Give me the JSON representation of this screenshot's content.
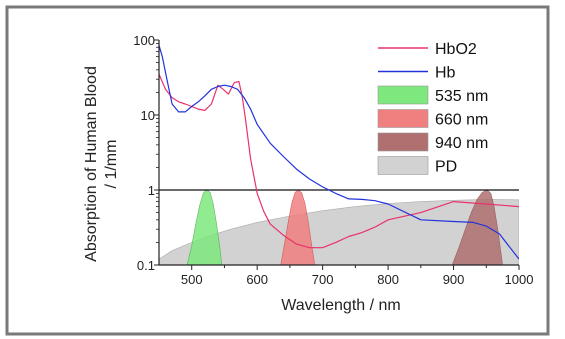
{
  "chart_data": {
    "type": "line",
    "title": "",
    "xlabel": "Wavelength / nm",
    "ylabel_line1": "Absorption of Human Blood",
    "ylabel_line2": "/ 1/mm",
    "xlim": [
      450,
      1000
    ],
    "ylim": [
      0.1,
      100
    ],
    "yscale": "log",
    "xticks": [
      500,
      600,
      700,
      800,
      900,
      1000
    ],
    "xtick_labels": [
      "500",
      "600",
      "700",
      "800",
      "900",
      "1000"
    ],
    "yticks": [
      0.1,
      1,
      10,
      100
    ],
    "ytick_labels": [
      "0.1",
      "1",
      "10",
      "100"
    ],
    "reference_line_y": 1,
    "grid": false,
    "legend_position": "top-right",
    "series": [
      {
        "name": "HbO2",
        "kind": "line",
        "color": "#e8336b",
        "x": [
          450,
          460,
          470,
          480,
          490,
          500,
          510,
          520,
          530,
          540,
          548,
          556,
          565,
          572,
          577,
          582,
          590,
          600,
          610,
          620,
          640,
          660,
          680,
          700,
          720,
          740,
          760,
          780,
          800,
          850,
          900,
          950,
          1000
        ],
        "y": [
          35,
          22,
          17,
          15,
          14,
          13,
          12,
          11.5,
          14,
          25,
          22,
          19,
          27,
          28,
          18,
          9,
          2.6,
          0.9,
          0.52,
          0.35,
          0.25,
          0.19,
          0.17,
          0.17,
          0.2,
          0.24,
          0.27,
          0.32,
          0.4,
          0.5,
          0.7,
          0.65,
          0.6
        ]
      },
      {
        "name": "Hb",
        "kind": "line",
        "color": "#2233dd",
        "x": [
          450,
          455,
          462,
          470,
          480,
          490,
          500,
          510,
          520,
          530,
          540,
          550,
          560,
          570,
          580,
          590,
          600,
          620,
          640,
          660,
          680,
          700,
          720,
          740,
          760,
          780,
          800,
          850,
          900,
          930,
          950,
          970,
          1000
        ],
        "y": [
          85,
          60,
          30,
          14,
          11,
          11,
          13,
          15,
          18,
          22,
          24,
          25,
          24,
          22,
          17,
          12,
          7.5,
          4.2,
          2.8,
          1.9,
          1.4,
          1.1,
          0.9,
          0.76,
          0.75,
          0.72,
          0.65,
          0.4,
          0.38,
          0.37,
          0.33,
          0.26,
          0.12
        ]
      }
    ],
    "bands": [
      {
        "name": "535 nm",
        "color": "#7ee87e",
        "edge": "#4aa84a",
        "x": [
          493,
          500,
          506,
          512,
          518,
          523,
          528,
          533,
          538,
          543,
          546
        ],
        "y": [
          0.1,
          0.18,
          0.35,
          0.62,
          0.92,
          1.0,
          0.93,
          0.65,
          0.35,
          0.17,
          0.1
        ]
      },
      {
        "name": "660 nm",
        "color": "#f07f7f",
        "edge": "#c84a4a",
        "x": [
          636,
          642,
          648,
          653,
          658,
          663,
          668,
          673,
          678,
          683,
          688
        ],
        "y": [
          0.1,
          0.2,
          0.4,
          0.68,
          0.93,
          1.0,
          0.92,
          0.66,
          0.38,
          0.19,
          0.1
        ]
      },
      {
        "name": "940 nm",
        "color": "#b07070",
        "edge": "#8a4a4a",
        "x": [
          898,
          908,
          918,
          927,
          936,
          944,
          951,
          957,
          962,
          968,
          975
        ],
        "y": [
          0.1,
          0.17,
          0.3,
          0.5,
          0.75,
          0.93,
          1.0,
          0.9,
          0.6,
          0.28,
          0.1
        ]
      },
      {
        "name": "PD",
        "color": "#d2d2d2",
        "edge": "#aaaaaa",
        "x": [
          450,
          470,
          500,
          530,
          560,
          600,
          650,
          700,
          750,
          800,
          850,
          900,
          950,
          1000
        ],
        "y": [
          0.12,
          0.155,
          0.2,
          0.25,
          0.3,
          0.37,
          0.45,
          0.53,
          0.6,
          0.66,
          0.7,
          0.73,
          0.75,
          0.74
        ]
      }
    ],
    "legend_entries": [
      {
        "label": "HbO2",
        "symbol": "line",
        "color": "#e8336b"
      },
      {
        "label": "Hb",
        "symbol": "line",
        "color": "#2233dd"
      },
      {
        "label": "535 nm",
        "symbol": "box",
        "color": "#7ee87e"
      },
      {
        "label": "660 nm",
        "symbol": "box",
        "color": "#f07f7f"
      },
      {
        "label": "940 nm",
        "symbol": "box",
        "color": "#b07070"
      },
      {
        "label": "PD",
        "symbol": "box",
        "color": "#d2d2d2"
      }
    ]
  },
  "frame": {
    "border_color": "#7a7a7a",
    "axis_color": "#222222"
  }
}
